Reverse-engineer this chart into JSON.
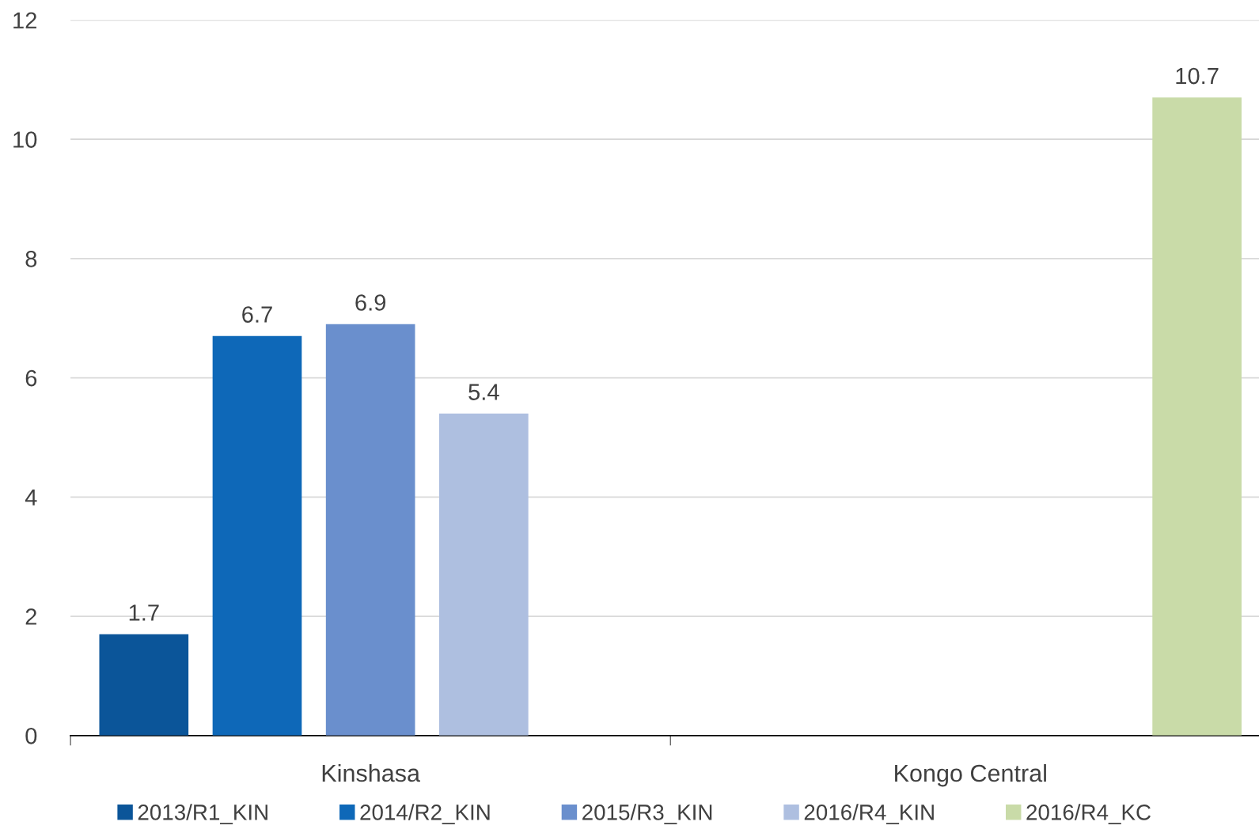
{
  "chart_data": {
    "type": "bar",
    "categories": [
      "Kinshasa",
      "Kongo Central"
    ],
    "series": [
      {
        "name": "2013/R1_KIN",
        "color": "#0b5599",
        "values": [
          1.7,
          null
        ]
      },
      {
        "name": "2014/R2_KIN",
        "color": "#0e68b8",
        "values": [
          6.7,
          null
        ]
      },
      {
        "name": "2015/R3_KIN",
        "color": "#6a8fcd",
        "values": [
          6.9,
          null
        ]
      },
      {
        "name": "2016/R4_KIN",
        "color": "#aebfe0",
        "values": [
          5.4,
          null
        ]
      },
      {
        "name": "2016/R4_KC",
        "color": "#c9dba8",
        "values": [
          null,
          10.7
        ]
      }
    ],
    "ylim": [
      0,
      12
    ],
    "yticks": [
      0,
      2,
      4,
      6,
      8,
      10,
      12
    ],
    "grid": "y",
    "legend": "bottom",
    "data_labels": true
  }
}
